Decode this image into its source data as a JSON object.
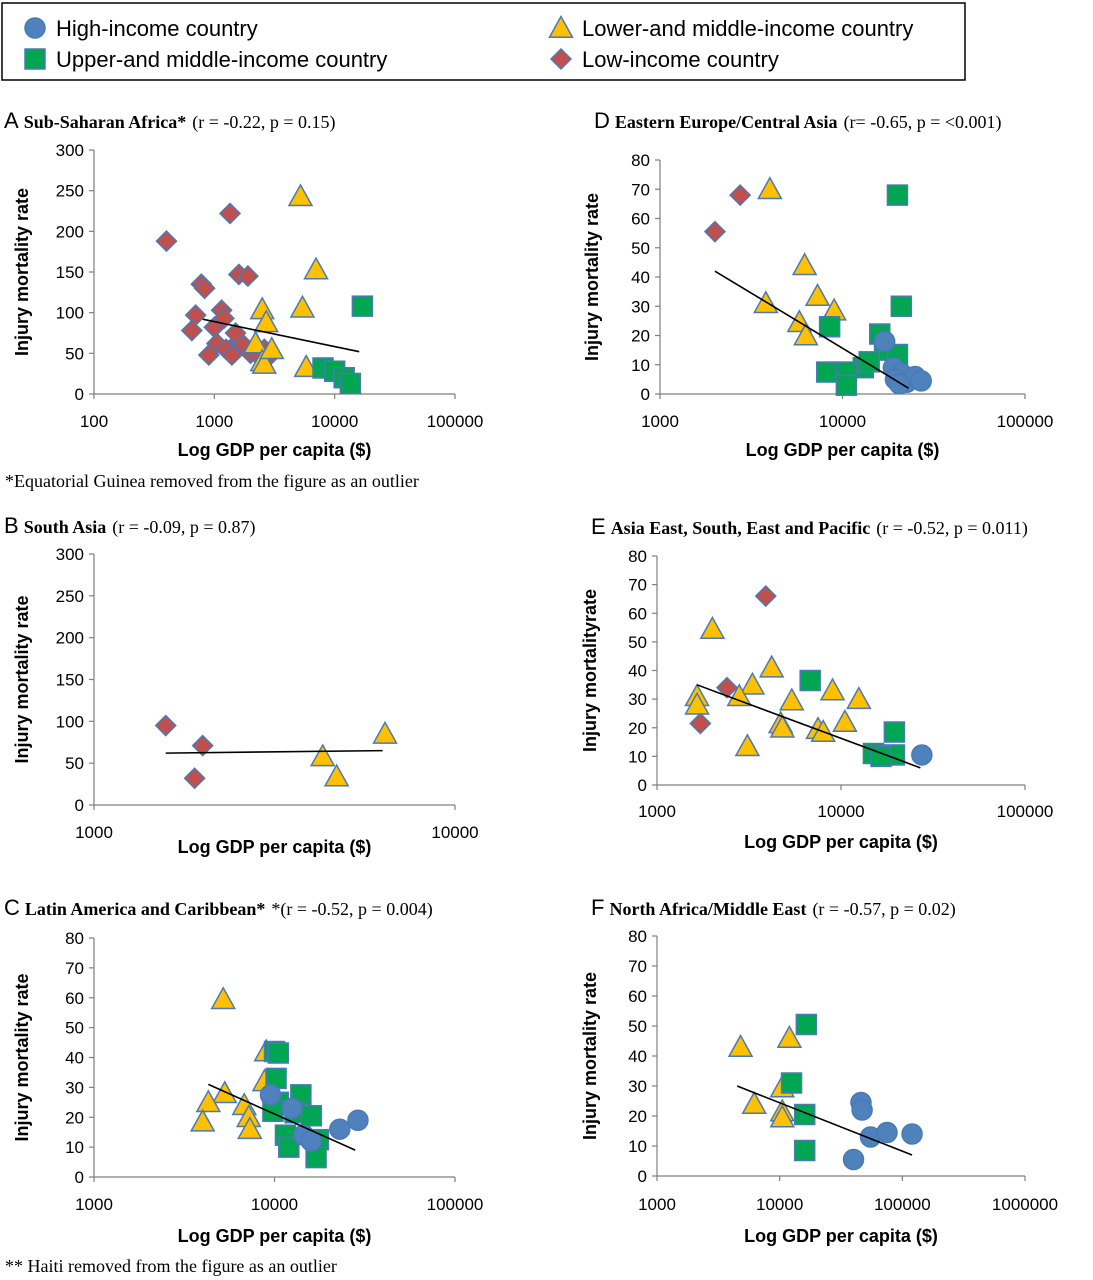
{
  "legend": {
    "entries": [
      {
        "label": "High-income country",
        "marker": "circle",
        "color": "#4f81bd"
      },
      {
        "label": "Lower-and middle-income country",
        "marker": "triangle",
        "color": "#ffc000"
      },
      {
        "label": "Upper-and middle-income country",
        "marker": "square",
        "color": "#00a651"
      },
      {
        "label": "Low-income country",
        "marker": "diamond",
        "color": "#c0504d"
      }
    ]
  },
  "chart_data": [
    {
      "letter": "A",
      "type": "scatter",
      "title": "Sub-Saharan Africa*",
      "stats": "(r = -0.22, p =  0.15)",
      "xlabel": "Log GDP per capita  ($)",
      "ylabel": "Injury mortality rate",
      "xscale": "log",
      "xlim": [
        100,
        100000
      ],
      "ylim": [
        0,
        300
      ],
      "xticks": [
        "100",
        "1000",
        "10000",
        "100000"
      ],
      "yticks": [
        "0",
        "50",
        "100",
        "150",
        "200",
        "250",
        "300"
      ],
      "footnote": "*Equatorial Guinea removed from the figure as an outlier",
      "trend": [
        [
          800,
          92
        ],
        [
          16000,
          52
        ]
      ],
      "series": [
        {
          "group": "low",
          "points": [
            [
              400,
              188
            ],
            [
              1350,
              222
            ],
            [
              780,
              135
            ],
            [
              830,
              130
            ],
            [
              1600,
              147
            ],
            [
              1900,
              145
            ],
            [
              700,
              97
            ],
            [
              650,
              78
            ],
            [
              1150,
              103
            ],
            [
              1000,
              82
            ],
            [
              1200,
              93
            ],
            [
              900,
              48
            ],
            [
              1050,
              62
            ],
            [
              1250,
              55
            ],
            [
              1400,
              48
            ],
            [
              1600,
              65
            ],
            [
              1750,
              60
            ],
            [
              2000,
              50
            ],
            [
              2300,
              48
            ],
            [
              2600,
              55
            ],
            [
              2700,
              43
            ],
            [
              1500,
              75
            ]
          ]
        },
        {
          "group": "lmi",
          "points": [
            [
              5200,
              243
            ],
            [
              7000,
              153
            ],
            [
              5400,
              106
            ],
            [
              2500,
              104
            ],
            [
              2700,
              88
            ],
            [
              2200,
              62
            ],
            [
              2500,
              40
            ],
            [
              2600,
              37
            ],
            [
              5800,
              33
            ],
            [
              3000,
              55
            ]
          ]
        },
        {
          "group": "umi",
          "points": [
            [
              17000,
              108
            ],
            [
              8000,
              32
            ],
            [
              10000,
              28
            ],
            [
              12000,
              20
            ],
            [
              13500,
              13
            ]
          ]
        },
        {
          "group": "high",
          "points": []
        }
      ]
    },
    {
      "letter": "D",
      "type": "scatter",
      "title": "Eastern Europe/Central Asia",
      "stats": "(r= -0.65, p = <0.001)",
      "xlabel": "Log GDP per capita ($)",
      "ylabel": "Injury mortality rate",
      "xscale": "log",
      "xlim": [
        1000,
        100000
      ],
      "ylim": [
        0,
        80
      ],
      "xticks": [
        "1000",
        "10000",
        "100000"
      ],
      "yticks": [
        "0",
        "10",
        "20",
        "30",
        "40",
        "50",
        "60",
        "70",
        "80"
      ],
      "trend": [
        [
          2000,
          42
        ],
        [
          23000,
          2
        ]
      ],
      "series": [
        {
          "group": "low",
          "points": [
            [
              2000,
              55.5
            ],
            [
              2750,
              68
            ]
          ]
        },
        {
          "group": "lmi",
          "points": [
            [
              4000,
              70
            ],
            [
              6200,
              44
            ],
            [
              7300,
              33.5
            ],
            [
              9000,
              28.5
            ],
            [
              3800,
              31
            ],
            [
              5800,
              24.5
            ],
            [
              6300,
              20
            ]
          ]
        },
        {
          "group": "umi",
          "points": [
            [
              20000,
              68
            ],
            [
              21000,
              30
            ],
            [
              8500,
              23
            ],
            [
              16000,
              20.5
            ],
            [
              17000,
              15
            ],
            [
              20000,
              13.5
            ],
            [
              13000,
              9
            ],
            [
              14000,
              11
            ],
            [
              8200,
              7.5
            ],
            [
              10500,
              7.5
            ],
            [
              10500,
              3
            ]
          ]
        },
        {
          "group": "high",
          "points": [
            [
              17000,
              18
            ],
            [
              19000,
              9
            ],
            [
              21000,
              7
            ],
            [
              19500,
              5
            ],
            [
              22500,
              4
            ],
            [
              25000,
              6
            ],
            [
              27000,
              4.5
            ],
            [
              20500,
              3.5
            ]
          ]
        }
      ]
    },
    {
      "letter": "B",
      "type": "scatter",
      "title": "South Asia",
      "stats": "(r = -0.09, p = 0.87)",
      "xlabel": "Log GDP per capita ($)",
      "ylabel": "Injury mortality rate",
      "xscale": "log",
      "xlim": [
        1000,
        10000
      ],
      "ylim": [
        0,
        300
      ],
      "xticks": [
        "1000",
        "10000"
      ],
      "yticks": [
        "0",
        "50",
        "100",
        "150",
        "200",
        "250",
        "300"
      ],
      "trend": [
        [
          1580,
          62
        ],
        [
          6300,
          65
        ]
      ],
      "series": [
        {
          "group": "low",
          "points": [
            [
              1580,
              95
            ],
            [
              2000,
              71
            ],
            [
              1900,
              32
            ]
          ]
        },
        {
          "group": "lmi",
          "points": [
            [
              6400,
              85
            ],
            [
              4300,
              58
            ],
            [
              4700,
              34
            ]
          ]
        },
        {
          "group": "umi",
          "points": []
        },
        {
          "group": "high",
          "points": []
        }
      ]
    },
    {
      "letter": "E",
      "type": "scatter",
      "title": "Asia East, South, East and Pacific",
      "stats": "(r = -0.52, p = 0.011)",
      "xlabel": "Log GDP per capita ($)",
      "ylabel": "Injury mortalityrate",
      "xscale": "log",
      "xlim": [
        1000,
        100000
      ],
      "ylim": [
        0,
        80
      ],
      "xticks": [
        "1000",
        "10000",
        "100000"
      ],
      "yticks": [
        "0",
        "10",
        "20",
        "30",
        "40",
        "50",
        "60",
        "70",
        "80"
      ],
      "trend": [
        [
          1650,
          35
        ],
        [
          27000,
          6
        ]
      ],
      "series": [
        {
          "group": "low",
          "points": [
            [
              3900,
              66
            ],
            [
              2400,
              34
            ],
            [
              1720,
              21.5
            ]
          ]
        },
        {
          "group": "lmi",
          "points": [
            [
              2000,
              54.5
            ],
            [
              4200,
              41
            ],
            [
              3300,
              35
            ],
            [
              1650,
              31
            ],
            [
              1650,
              28
            ],
            [
              2800,
              31
            ],
            [
              5400,
              29.5
            ],
            [
              9000,
              33
            ],
            [
              12500,
              30
            ],
            [
              10500,
              22
            ],
            [
              4700,
              21.5
            ],
            [
              4800,
              20
            ],
            [
              7500,
              19.5
            ],
            [
              8000,
              18.5
            ],
            [
              3100,
              13.5
            ]
          ]
        },
        {
          "group": "umi",
          "points": [
            [
              6800,
              36.5
            ],
            [
              19500,
              18.5
            ],
            [
              15000,
              11
            ],
            [
              19500,
              10.5
            ],
            [
              16500,
              10
            ]
          ]
        },
        {
          "group": "high",
          "points": [
            [
              27500,
              10.5
            ]
          ]
        }
      ]
    },
    {
      "letter": "C",
      "type": "scatter",
      "title": "Latin America and Caribbean*",
      "stats": "*(r = -0.52, p = 0.004)",
      "xlabel": "Log GDP per capita ($)",
      "ylabel": "Injury mortality rate",
      "xscale": "log",
      "xlim": [
        1000,
        100000
      ],
      "ylim": [
        0,
        80
      ],
      "xticks": [
        "1000",
        "10000",
        "100000"
      ],
      "yticks": [
        "0",
        "10",
        "20",
        "30",
        "40",
        "50",
        "60",
        "70",
        "80"
      ],
      "footnote": "** Haiti removed from the figure as an outlier",
      "trend": [
        [
          4300,
          31
        ],
        [
          28000,
          9
        ]
      ],
      "series": [
        {
          "group": "low",
          "points": []
        },
        {
          "group": "lmi",
          "points": [
            [
              5200,
              59.5
            ],
            [
              9000,
              42
            ],
            [
              8800,
              32
            ],
            [
              5300,
              28
            ],
            [
              4300,
              25
            ],
            [
              6800,
              24
            ],
            [
              7200,
              20
            ],
            [
              7300,
              16
            ],
            [
              4000,
              18.5
            ]
          ]
        },
        {
          "group": "umi",
          "points": [
            [
              10000,
              42
            ],
            [
              10500,
              41.5
            ],
            [
              10200,
              33
            ],
            [
              14000,
              27.5
            ],
            [
              10500,
              25
            ],
            [
              13000,
              21.5
            ],
            [
              16000,
              20.5
            ],
            [
              11500,
              14
            ],
            [
              12000,
              10
            ],
            [
              17500,
              12.5
            ],
            [
              17000,
              6.5
            ],
            [
              9800,
              22
            ]
          ]
        },
        {
          "group": "high",
          "points": [
            [
              9500,
              27.5
            ],
            [
              12500,
              23
            ],
            [
              14500,
              14
            ],
            [
              16000,
              12
            ],
            [
              23000,
              16
            ],
            [
              29000,
              19
            ]
          ]
        }
      ]
    },
    {
      "letter": "F",
      "type": "scatter",
      "title": "North Africa/Middle East",
      "stats": "(r = -0.57, p = 0.02)",
      "xlabel": "Log GDP per capita ($)",
      "ylabel": "Injury mortality rate",
      "xscale": "log",
      "xlim": [
        1000,
        1000000
      ],
      "ylim": [
        0,
        80
      ],
      "xticks": [
        "1000",
        "10000",
        "100000",
        "1000000"
      ],
      "yticks": [
        "0",
        "10",
        "20",
        "30",
        "40",
        "50",
        "60",
        "70",
        "80"
      ],
      "trend": [
        [
          4500,
          30
        ],
        [
          120000,
          7
        ]
      ],
      "series": [
        {
          "group": "low",
          "points": []
        },
        {
          "group": "lmi",
          "points": [
            [
              4800,
              43
            ],
            [
              12000,
              46
            ],
            [
              10500,
              29.5
            ],
            [
              6200,
              24
            ],
            [
              10500,
              21.5
            ],
            [
              10500,
              19.5
            ]
          ]
        },
        {
          "group": "umi",
          "points": [
            [
              16500,
              50.5
            ],
            [
              12500,
              31
            ],
            [
              16000,
              20.5
            ],
            [
              16000,
              8.5
            ]
          ]
        },
        {
          "group": "high",
          "points": [
            [
              46000,
              24.5
            ],
            [
              47000,
              22
            ],
            [
              55000,
              13
            ],
            [
              75000,
              14.5
            ],
            [
              120000,
              14
            ],
            [
              40000,
              5.5
            ]
          ]
        }
      ]
    }
  ]
}
